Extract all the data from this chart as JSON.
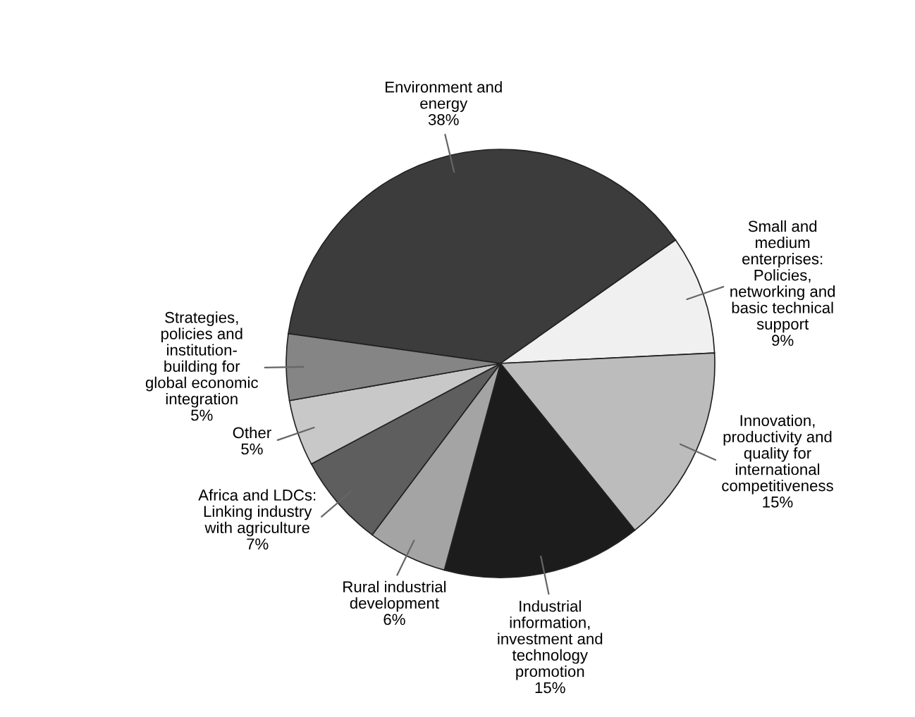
{
  "chart_data": {
    "type": "pie",
    "categories": [
      "Environment and\nenergy",
      "Small and\nmedium\nenterprises:\nPolicies,\nnetworking and\nbasic technical\nsupport",
      "Innovation,\nproductivity and\nquality for\ninternational\ncompetitiveness",
      "Industrial\ninformation,\ninvestment and\ntechnology\npromotion",
      "Rural industrial\ndevelopment",
      "Africa and LDCs:\nLinking industry\nwith agriculture",
      "Other",
      "Strategies,\npolicies and\ninstitution-\nbuilding for\nglobal economic\nintegration"
    ],
    "values": [
      38,
      9,
      15,
      15,
      6,
      7,
      5,
      5
    ],
    "colors": [
      "#3c3c3c",
      "#f0f0f0",
      "#bcbcbc",
      "#1c1c1c",
      "#a4a4a4",
      "#5e5e5e",
      "#c8c8c8",
      "#858585"
    ],
    "value_labels": [
      "38%",
      "9%",
      "15%",
      "15%",
      "6%",
      "7%",
      "5%",
      "5%"
    ]
  }
}
